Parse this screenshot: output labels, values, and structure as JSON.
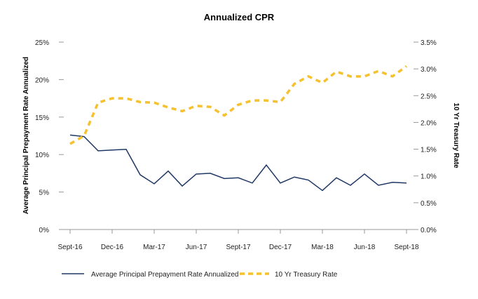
{
  "chart_data": {
    "type": "line",
    "title": "Annualized CPR",
    "ylabel": "Average Principal Prepayment Rate Annualized",
    "y2label": "10 Yr Treasury Rate",
    "x": [
      "Sept-16",
      "Oct-16",
      "Nov-16",
      "Dec-16",
      "Jan-17",
      "Feb-17",
      "Mar-17",
      "Apr-17",
      "May-17",
      "Jun-17",
      "Jul-17",
      "Aug-17",
      "Sept-17",
      "Oct-17",
      "Nov-17",
      "Dec-17",
      "Jan-18",
      "Feb-18",
      "Mar-18",
      "Apr-18",
      "May-18",
      "Jun-18",
      "Jul-18",
      "Aug-18",
      "Sept-18"
    ],
    "xticks": [
      "Sept-16",
      "Dec-16",
      "Mar-17",
      "Jun-17",
      "Sept-17",
      "Dec-17",
      "Mar-18",
      "Jun-18",
      "Sept-18"
    ],
    "ylim": [
      0,
      25
    ],
    "yticks": [
      "0%",
      "5%",
      "10%",
      "15%",
      "20%",
      "25%"
    ],
    "y2lim": [
      0,
      3.5
    ],
    "y2ticks": [
      "0.0%",
      "0.5%",
      "1.0%",
      "1.5%",
      "2.0%",
      "2.5%",
      "3.0%",
      "3.5%"
    ],
    "grid": false,
    "legend_position": "bottom",
    "series": [
      {
        "name": "Average Principal Prepayment Rate Annualized",
        "axis": "left",
        "color": "#1f3864",
        "style": "solid",
        "values": [
          12.6,
          12.4,
          10.5,
          10.6,
          10.7,
          7.3,
          6.1,
          7.8,
          5.8,
          7.4,
          7.5,
          6.8,
          6.9,
          6.2,
          8.6,
          6.2,
          7.0,
          6.6,
          5.2,
          6.9,
          5.9,
          7.4,
          5.9,
          6.3,
          6.2
        ]
      },
      {
        "name": "10 Yr Treasury Rate",
        "axis": "right",
        "color": "#f5c12e",
        "style": "dashed",
        "values": [
          1.6,
          1.75,
          2.37,
          2.45,
          2.45,
          2.38,
          2.37,
          2.28,
          2.21,
          2.31,
          2.29,
          2.13,
          2.33,
          2.41,
          2.41,
          2.38,
          2.72,
          2.86,
          2.74,
          2.95,
          2.86,
          2.86,
          2.96,
          2.86,
          3.05
        ]
      }
    ]
  }
}
